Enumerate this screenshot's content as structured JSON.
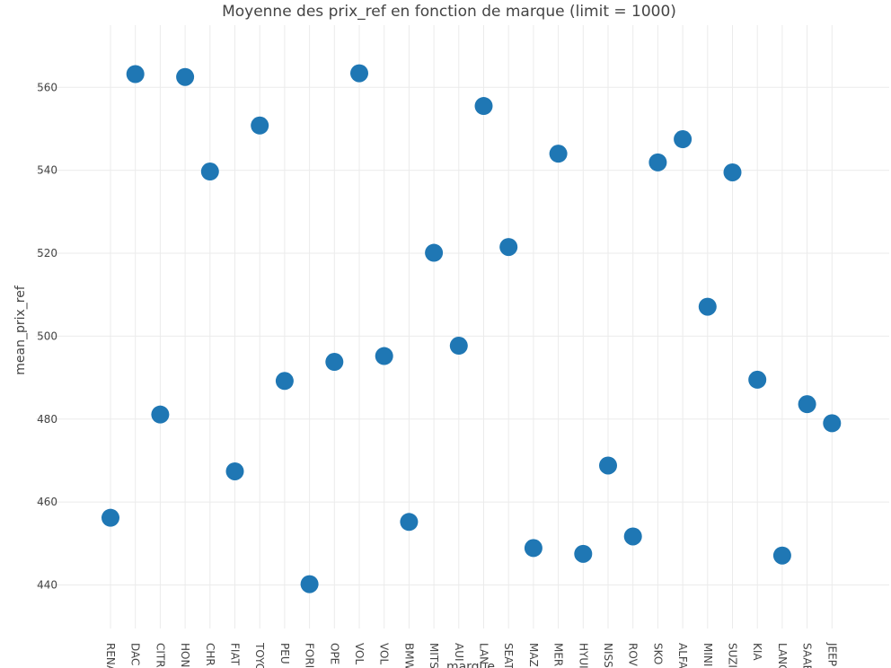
{
  "chart_data": {
    "type": "scatter",
    "title": "Moyenne des prix_ref en fonction de marque (limit = 1000)",
    "xlabel": "marque",
    "ylabel": "mean_prix_ref",
    "categories": [
      "RENA",
      "DAC",
      "CITR",
      "HON",
      "CHR",
      "FIAT",
      "TOYO",
      "PEU",
      "FORI",
      "OPE",
      "VOL",
      "VOL",
      "BMW",
      "MITS",
      "AUI",
      "LAN",
      "SEAT",
      "MAZ",
      "MER",
      "HYUI",
      "NISS",
      "ROV",
      "SKO",
      "ALFA",
      "MINI",
      "SUZI",
      "KIA",
      "LANG",
      "SAAE",
      "JEEP"
    ],
    "values": [
      456.2,
      563.2,
      481.1,
      562.5,
      539.7,
      467.4,
      550.8,
      489.2,
      440.2,
      493.8,
      563.4,
      495.2,
      455.2,
      520.1,
      497.7,
      555.5,
      521.5,
      448.9,
      544.0,
      447.5,
      468.8,
      451.7,
      541.9,
      547.5,
      507.1,
      539.5,
      489.5,
      447.1,
      483.6,
      479.0
    ],
    "y_ticks": [
      440,
      460,
      480,
      500,
      520,
      540,
      560
    ],
    "ylim": [
      429.5,
      575
    ],
    "grid": true,
    "legend": "none",
    "marker_color": "#1f77b4"
  }
}
